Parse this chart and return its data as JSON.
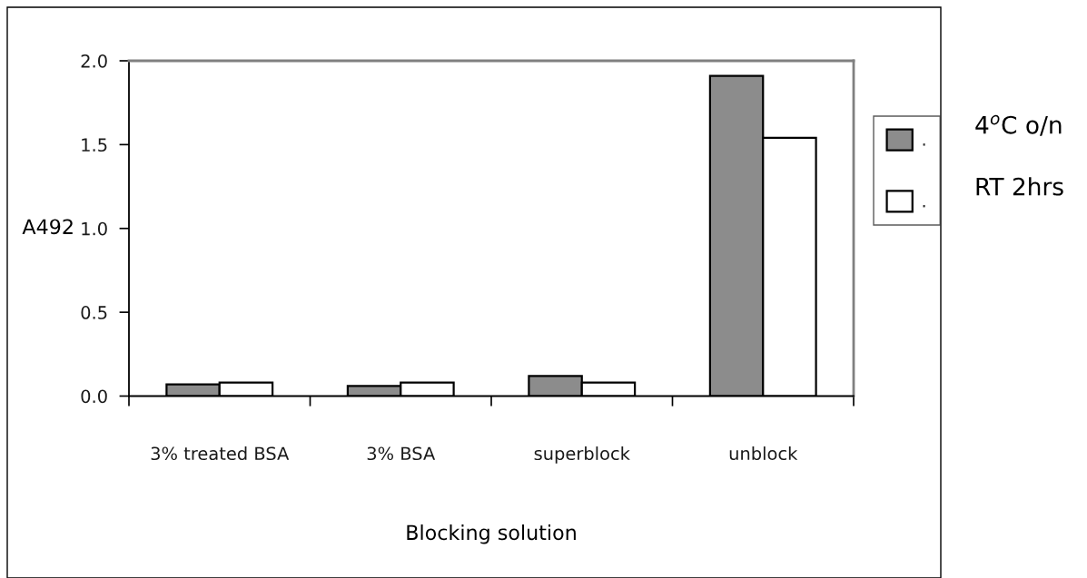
{
  "chart_data": {
    "type": "bar",
    "xlabel": "Blocking solution",
    "ylabel": "A492",
    "categories": [
      "3% treated BSA",
      "3% BSA",
      "superblock",
      "unblock"
    ],
    "series": [
      {
        "name": ".",
        "color": "#8c8c8c",
        "values": [
          0.07,
          0.06,
          0.12,
          1.91
        ]
      },
      {
        "name": ".",
        "color": "#ffffff",
        "values": [
          0.08,
          0.08,
          0.08,
          1.54
        ]
      }
    ],
    "ylim": [
      0,
      2
    ],
    "yticks": [
      {
        "value": 0,
        "label": "0.0"
      },
      {
        "value": 0.5,
        "label": "0.5"
      },
      {
        "value": 1,
        "label": "1.0"
      },
      {
        "value": 1.5,
        "label": "1.5"
      },
      {
        "value": 2,
        "label": "2.0"
      }
    ],
    "legend": "right",
    "annotations": [
      "4$^{o}$C o/n",
      "RT 2hrs"
    ]
  }
}
